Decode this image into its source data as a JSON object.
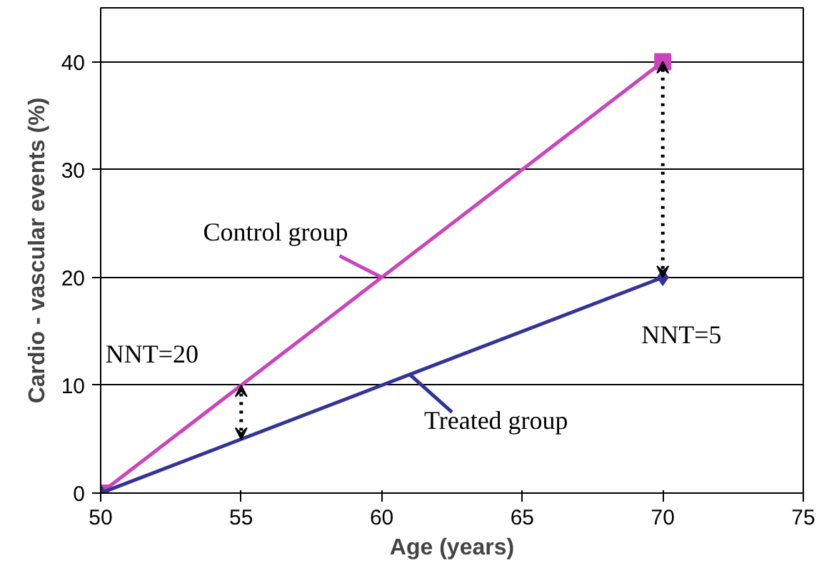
{
  "chart_data": {
    "type": "line",
    "xlabel": "Age (years)",
    "ylabel": "Cardio - vascular events (%)",
    "xlim": [
      50,
      75
    ],
    "xticks": [
      50,
      55,
      60,
      65,
      70,
      75
    ],
    "ylim": [
      0,
      45
    ],
    "yticks": [
      0,
      10,
      20,
      30,
      40
    ],
    "grid": "y",
    "x": [
      50,
      70
    ],
    "series": [
      {
        "name": "Control group",
        "color": "#cc44bb",
        "values": [
          0,
          40
        ],
        "marker": "square"
      },
      {
        "name": "Treated group",
        "color": "#333399",
        "values": [
          0,
          20
        ],
        "marker": "diamond"
      }
    ],
    "annotations": [
      {
        "text": "NNT=20",
        "x": 55,
        "y": 10
      },
      {
        "text": "NNT=5",
        "x": 70,
        "y": 20
      }
    ]
  }
}
